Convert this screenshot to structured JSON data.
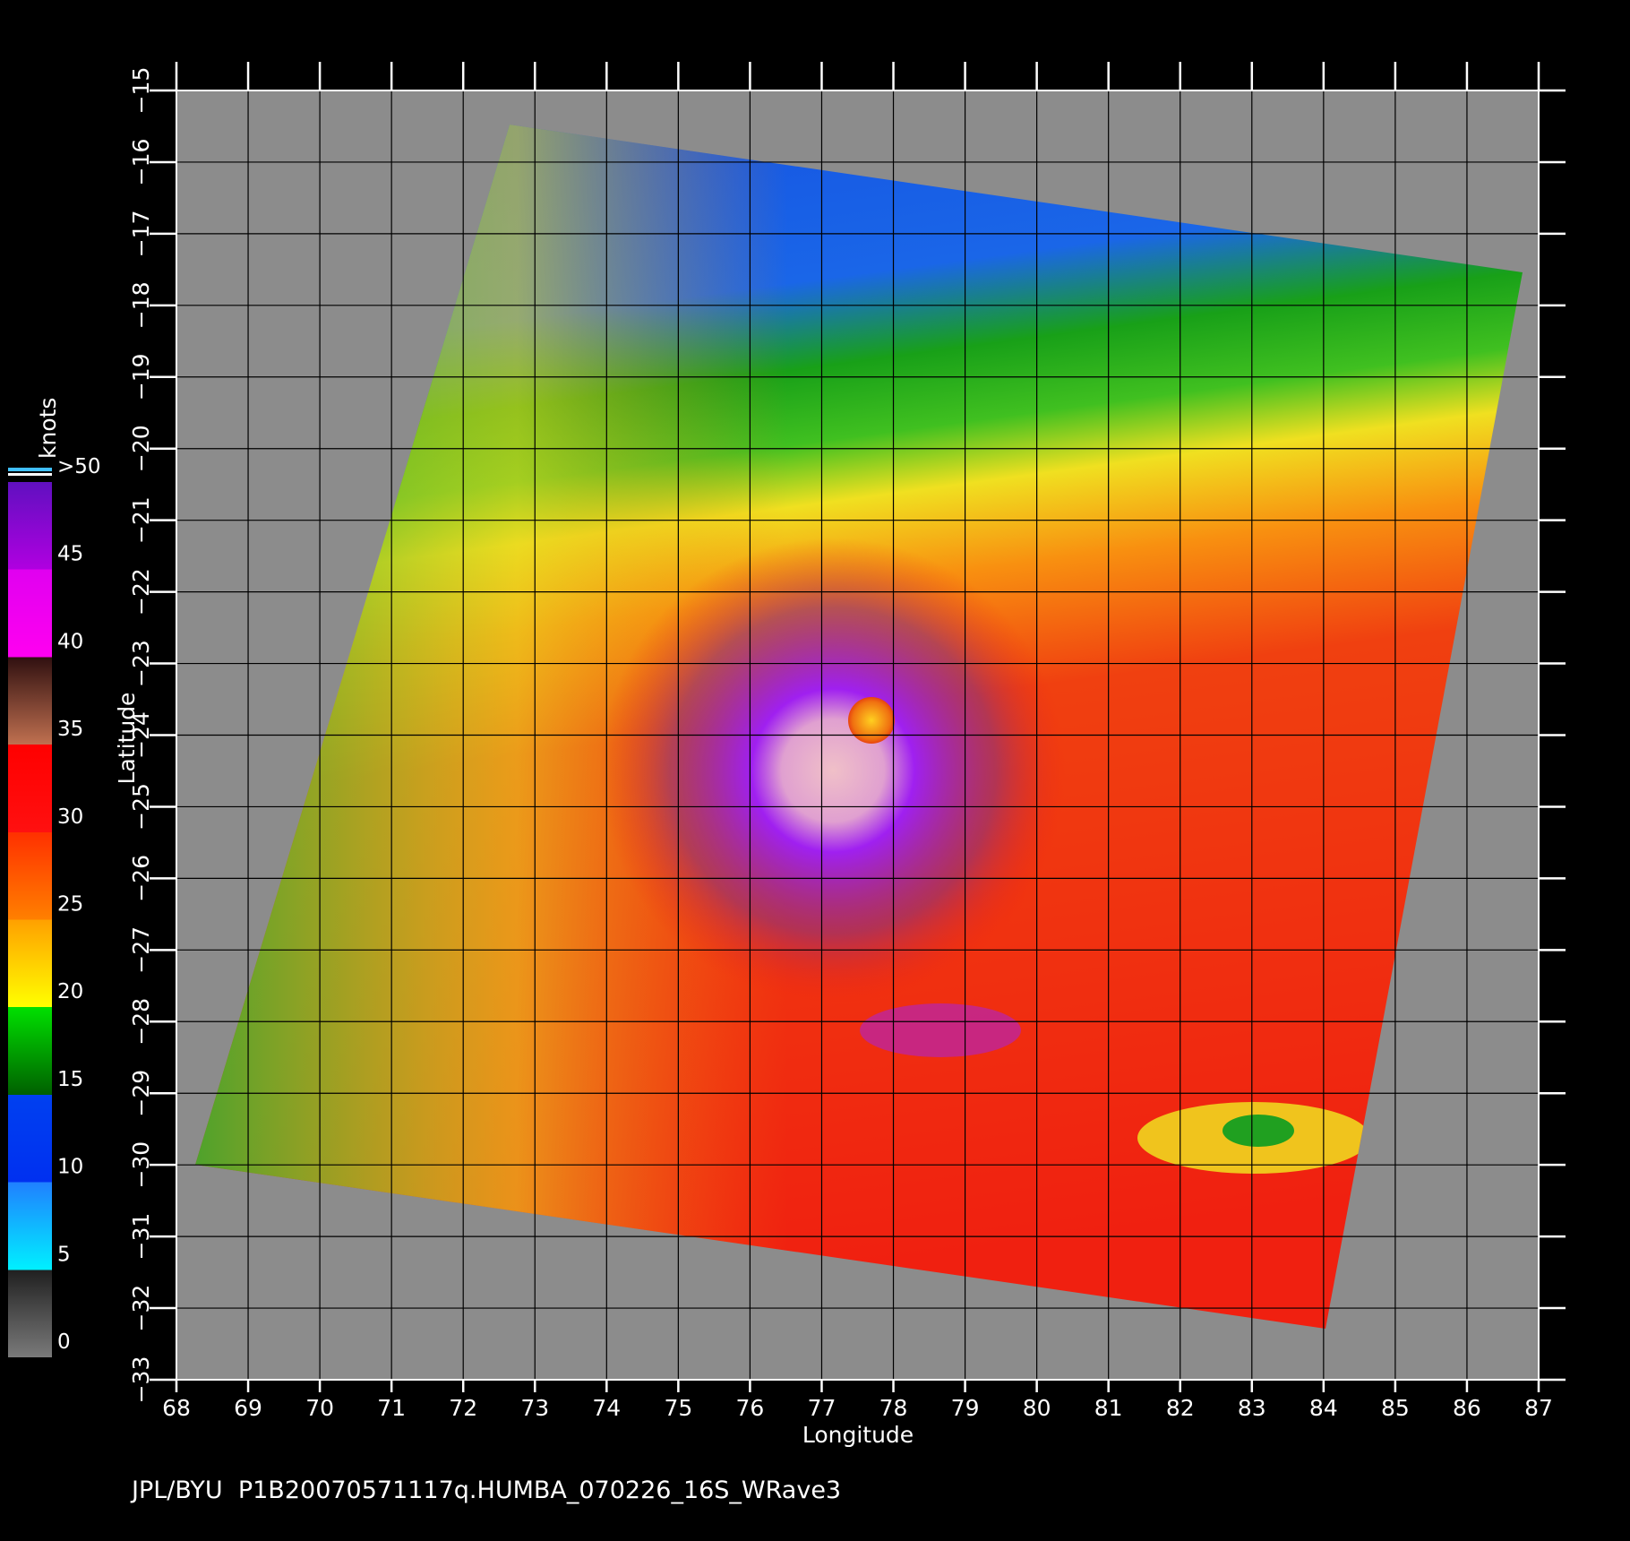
{
  "map": {
    "xlabel": "Longitude",
    "ylabel": "Latitude",
    "xlim": [
      68,
      87
    ],
    "ylim": [
      -15,
      -33
    ],
    "xticks": [
      68,
      69,
      70,
      71,
      72,
      73,
      74,
      75,
      76,
      77,
      78,
      79,
      80,
      81,
      82,
      83,
      84,
      85,
      86,
      87
    ],
    "yticks": [
      -15,
      -16,
      -17,
      -18,
      -19,
      -20,
      -21,
      -22,
      -23,
      -24,
      -25,
      -26,
      -27,
      -28,
      -29,
      -30,
      -31,
      -32,
      -33
    ]
  },
  "colorbar": {
    "title": "knots",
    "ticks": [
      0,
      5,
      10,
      15,
      20,
      25,
      30,
      35,
      40,
      45,
      {
        "value": 50,
        "label": ">50"
      }
    ]
  },
  "footer": "JPL/BYU  P1B20070571117q.HUMBA_070226_16S_WRave3"
}
